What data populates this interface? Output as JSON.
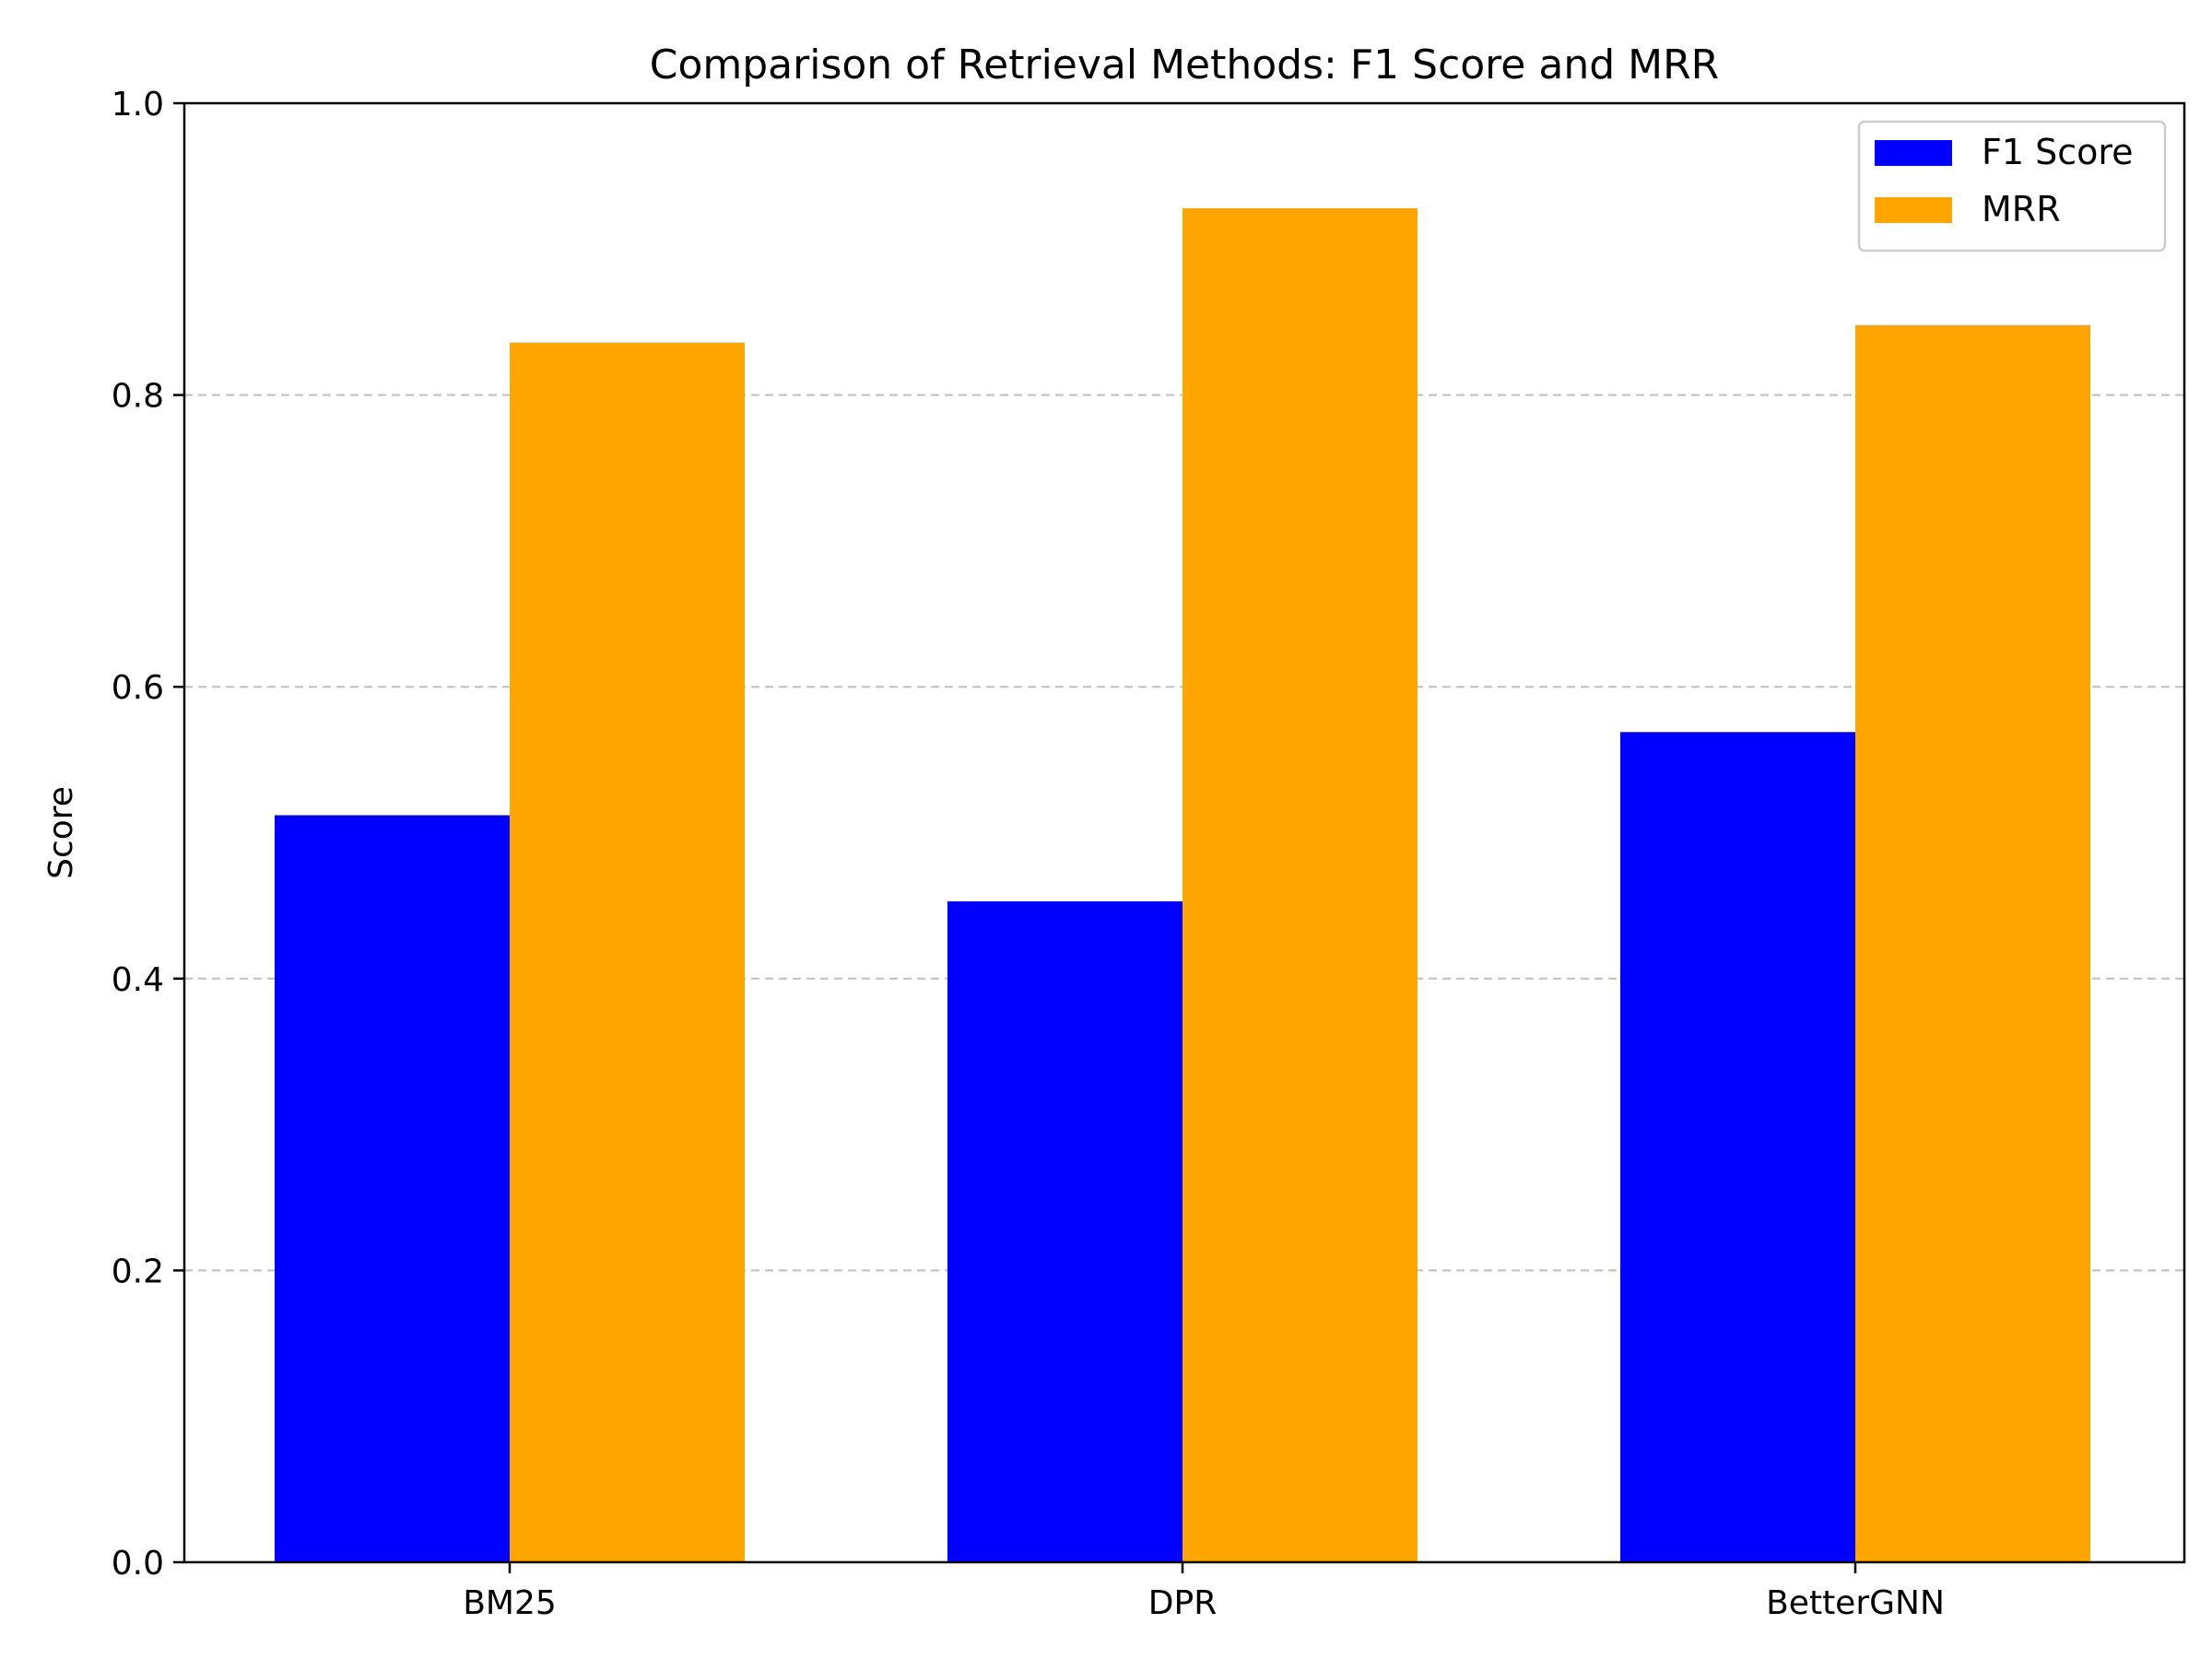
{
  "chart_data": {
    "type": "bar",
    "title": "Comparison of Retrieval Methods: F1 Score and MRR",
    "xlabel": "",
    "ylabel": "Score",
    "categories": [
      "BM25",
      "DPR",
      "BetterGNN"
    ],
    "series": [
      {
        "name": "F1 Score",
        "color": "#0000ff",
        "values": [
          0.512,
          0.453,
          0.569
        ]
      },
      {
        "name": "MRR",
        "color": "#ffa500",
        "values": [
          0.836,
          0.928,
          0.848
        ]
      }
    ],
    "ylim": [
      0,
      1.0
    ],
    "yticks": [
      "0.0",
      "0.2",
      "0.4",
      "0.6",
      "0.8",
      "1.0"
    ],
    "grid": "y-dashed",
    "legend_position": "top-right"
  }
}
